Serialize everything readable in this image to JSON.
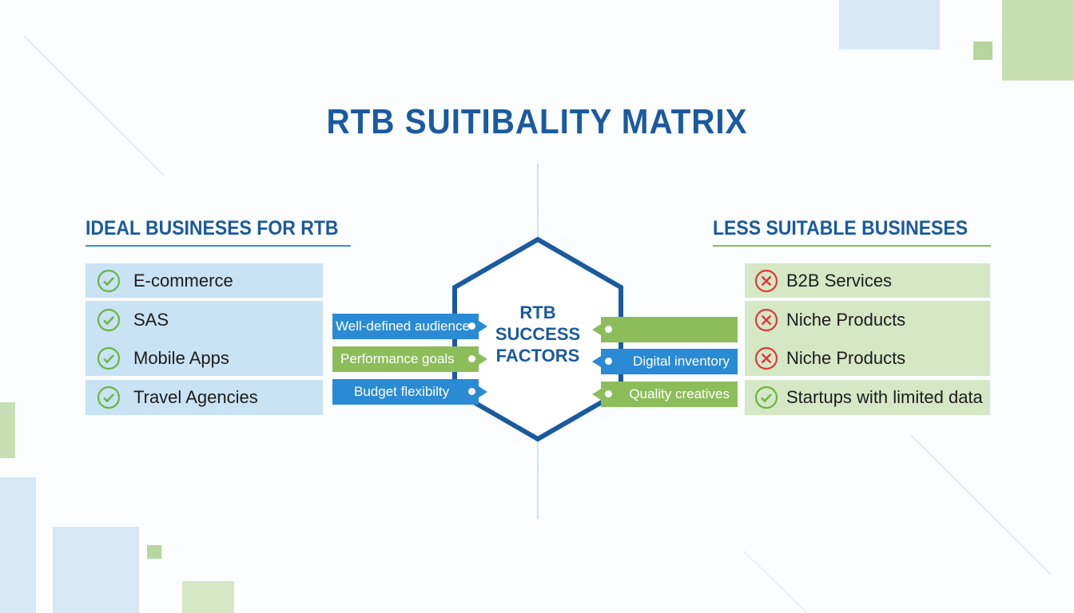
{
  "title": "RTB SUITIBALITY MATRIX",
  "left": {
    "heading": "IDEAL BUSINESES FOR RTB",
    "items": [
      {
        "label": "E-commerce",
        "icon": "check-circle-icon"
      },
      {
        "label": "SAS",
        "icon": "check-circle-icon"
      },
      {
        "label": "Mobile Apps",
        "icon": "check-circle-icon"
      },
      {
        "label": "Travel Agencies",
        "icon": "check-circle-icon"
      }
    ]
  },
  "right": {
    "heading": "LESS SUITABLE BUSINESES",
    "items": [
      {
        "label": "B2B Services",
        "icon": "x-circle-icon"
      },
      {
        "label": "Niche Products",
        "icon": "x-circle-icon"
      },
      {
        "label": "Niche Products",
        "icon": "x-circle-icon"
      },
      {
        "label": "Startups with limited data",
        "icon": "check-circle-icon"
      }
    ]
  },
  "center": {
    "lines": [
      "RTB",
      "SUCCESS",
      "FACTORS"
    ],
    "left_factors": [
      {
        "label": "Well-defined audience",
        "color": "#2a8ad4"
      },
      {
        "label": "Performance goals",
        "color": "#8dbd5a"
      },
      {
        "label": "Budget flexibilty",
        "color": "#2a8ad4"
      }
    ],
    "right_factors": [
      {
        "label": "",
        "color": "#8dbd5a"
      },
      {
        "label": "Digital inventory",
        "color": "#2a8ad4"
      },
      {
        "label": "Quality creatives",
        "color": "#8dbd5a"
      }
    ]
  },
  "colors": {
    "title": "#1a5a9e",
    "blue": "#2a8ad4",
    "green": "#8dbd5a",
    "left_bg": "#c9e2f4",
    "right_bg": "#d5e8c6",
    "check": "#6cb543",
    "cross": "#e0393e"
  }
}
